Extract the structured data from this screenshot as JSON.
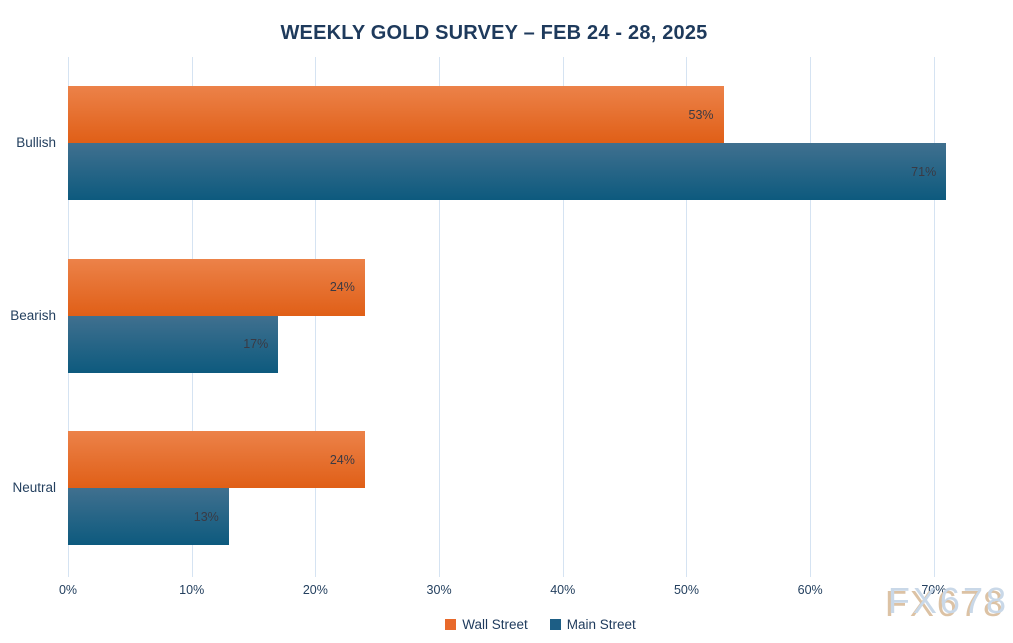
{
  "title": "WEEKLY GOLD SURVEY – FEB 24 - 28, 2025",
  "watermark": "FX678",
  "chart_data": {
    "type": "bar",
    "orientation": "horizontal",
    "title": "WEEKLY GOLD SURVEY – FEB 24 - 28, 2025",
    "categories": [
      "Bullish",
      "Bearish",
      "Neutral"
    ],
    "series": [
      {
        "name": "Wall Street",
        "color": "#E8692B",
        "gradient_top": "#EC8249",
        "gradient_bottom": "#E05F17",
        "values": [
          53,
          24,
          24
        ]
      },
      {
        "name": "Main Street",
        "color": "#1D5E85",
        "gradient_top": "#40708F",
        "gradient_bottom": "#0D5A7E",
        "values": [
          71,
          17,
          13
        ]
      }
    ],
    "value_suffix": "%",
    "xlim": [
      0,
      76.4
    ],
    "x_tick_values": [
      0,
      10,
      20,
      30,
      40,
      50,
      60,
      70
    ],
    "x_tick_labels": [
      "0%",
      "10%",
      "20%",
      "30%",
      "40%",
      "50%",
      "60%",
      "70%"
    ],
    "grid": "vertical",
    "legend_position": "bottom",
    "xlabel": "",
    "ylabel": ""
  },
  "colors": {
    "background": "#FFFFFF",
    "title_text": "#1E3A5C",
    "axis_text": "#24405F",
    "data_label_text": "#3A3A44",
    "gridline": "#D5E3F2",
    "watermark_text": "#C9D8E8",
    "watermark_shadow": "#DCC2A4"
  }
}
